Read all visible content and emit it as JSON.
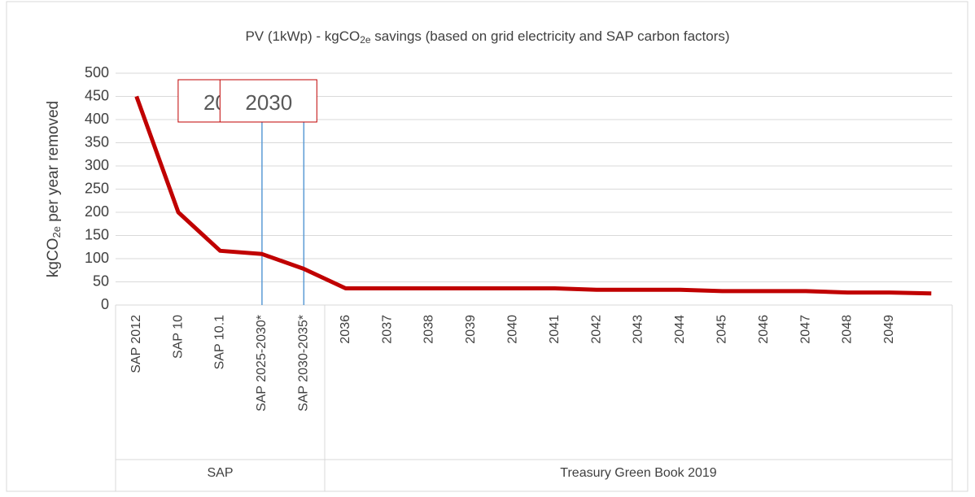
{
  "chart_data": {
    "type": "line",
    "title_parts": [
      "PV (1kWp) - kgCO",
      "2e",
      " savings (based on grid electricity and SAP carbon factors)"
    ],
    "ylabel_parts": [
      "kgCO",
      "2e",
      " per year removed"
    ],
    "categories": [
      "SAP 2012",
      "SAP 10",
      "SAP 10.1",
      "SAP 2025-2030*",
      "SAP 2030-2035*",
      "2036",
      "2037",
      "2038",
      "2039",
      "2040",
      "2041",
      "2042",
      "2043",
      "2044",
      "2045",
      "2046",
      "2047",
      "2048",
      "2049",
      null
    ],
    "groups": [
      {
        "label": "SAP",
        "count": 5
      },
      {
        "label": "Treasury Green Book 2019",
        "count": 15
      }
    ],
    "series": [
      {
        "name": "kgCO2e savings",
        "color": "#c00000",
        "values": [
          450,
          200,
          117,
          110,
          78,
          36,
          36,
          36,
          36,
          36,
          36,
          33,
          33,
          33,
          30,
          30,
          30,
          27,
          27,
          25
        ]
      }
    ],
    "annotations": [
      {
        "text": "2025",
        "category": 3
      },
      {
        "text": "2030",
        "category": 4
      }
    ],
    "ylim": [
      0,
      500
    ],
    "yticks": [
      0,
      50,
      100,
      150,
      200,
      250,
      300,
      350,
      400,
      450,
      500
    ],
    "grid": true
  }
}
